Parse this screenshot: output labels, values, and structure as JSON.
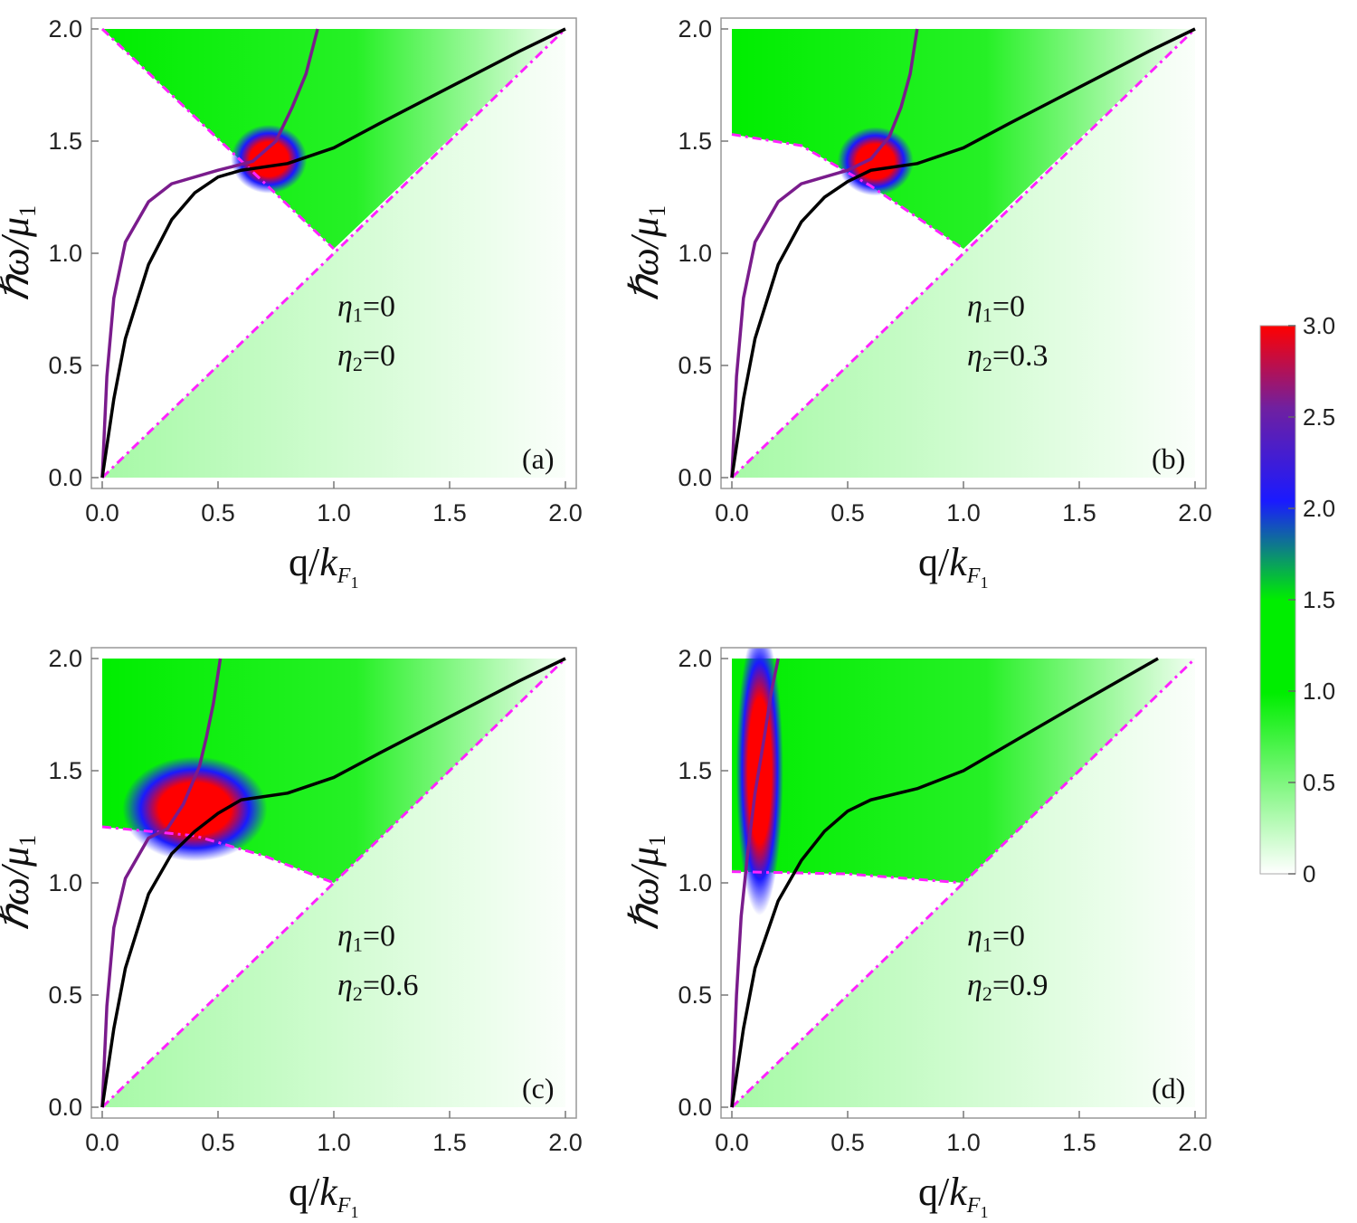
{
  "colors": {
    "black_curve": "#000000",
    "purple_curve": "#7a1c8c",
    "boundary": "#ff22ff",
    "high": "#ff0000",
    "mid": "#1a1aff",
    "green": "#00ee00",
    "low": "#ffffff"
  },
  "axes": {
    "xlabel_main": "q/",
    "xlabel_k": "k",
    "xlabel_sub": "F",
    "xlabel_subsub": "1",
    "ylabel_main": "ℏω/",
    "ylabel_mu": "μ",
    "ylabel_sub": "1",
    "xticks": [
      "0.0",
      "0.5",
      "1.0",
      "1.5",
      "2.0"
    ],
    "yticks": [
      "0.0",
      "0.5",
      "1.0",
      "1.5",
      "2.0"
    ]
  },
  "colorbar": {
    "range": [
      0,
      3.0
    ],
    "ticks": [
      "0",
      "0.5",
      "1.0",
      "1.5",
      "2.0",
      "2.5",
      "3.0"
    ]
  },
  "chart_data": [
    {
      "type": "heatmap",
      "panel_label": "(a)",
      "eta1_sym": "η",
      "eta1_sub": "1",
      "eta1_val": "=0",
      "eta2_sym": "η",
      "eta2_sub": "2",
      "eta2_val": "=0",
      "eta2": 0,
      "xlim": [
        0,
        2
      ],
      "ylim": [
        0,
        2
      ],
      "xlabel": "q/k_F1",
      "ylabel": "ħω/μ1",
      "boundary": [
        [
          0,
          2.0
        ],
        [
          1.0,
          1.02
        ],
        [
          0,
          0
        ],
        [
          2.0,
          2.0
        ]
      ],
      "hotspot": [
        0.72,
        1.42
      ],
      "black_curve": [
        [
          0,
          0
        ],
        [
          0.05,
          0.35
        ],
        [
          0.1,
          0.62
        ],
        [
          0.2,
          0.95
        ],
        [
          0.3,
          1.15
        ],
        [
          0.4,
          1.27
        ],
        [
          0.5,
          1.34
        ],
        [
          0.6,
          1.37
        ],
        [
          0.8,
          1.4
        ],
        [
          1.0,
          1.47
        ],
        [
          1.2,
          1.58
        ],
        [
          1.5,
          1.74
        ],
        [
          1.8,
          1.9
        ],
        [
          2.0,
          2.0
        ]
      ],
      "purple_curve": [
        [
          0,
          0
        ],
        [
          0.02,
          0.45
        ],
        [
          0.05,
          0.8
        ],
        [
          0.1,
          1.05
        ],
        [
          0.2,
          1.23
        ],
        [
          0.3,
          1.31
        ],
        [
          0.5,
          1.37
        ],
        [
          0.65,
          1.41
        ],
        [
          0.75,
          1.5
        ],
        [
          0.82,
          1.65
        ],
        [
          0.88,
          1.8
        ],
        [
          0.93,
          2.0
        ]
      ]
    },
    {
      "type": "heatmap",
      "panel_label": "(b)",
      "eta1_sym": "η",
      "eta1_sub": "1",
      "eta1_val": "=0",
      "eta2_sym": "η",
      "eta2_sub": "2",
      "eta2_val": "=0.3",
      "eta2": 0.3,
      "xlim": [
        0,
        2
      ],
      "ylim": [
        0,
        2
      ],
      "xlabel": "q/k_F1",
      "ylabel": "ħω/μ1",
      "boundary": [
        [
          0,
          1.53
        ],
        [
          0.3,
          1.48
        ],
        [
          0.6,
          1.3
        ],
        [
          1.0,
          1.02
        ],
        [
          0,
          0
        ],
        [
          2.0,
          2.0
        ]
      ],
      "hotspot": [
        0.62,
        1.41
      ],
      "black_curve": [
        [
          0,
          0
        ],
        [
          0.05,
          0.35
        ],
        [
          0.1,
          0.62
        ],
        [
          0.2,
          0.95
        ],
        [
          0.3,
          1.14
        ],
        [
          0.4,
          1.25
        ],
        [
          0.5,
          1.32
        ],
        [
          0.6,
          1.37
        ],
        [
          0.8,
          1.4
        ],
        [
          1.0,
          1.47
        ],
        [
          1.2,
          1.58
        ],
        [
          1.5,
          1.74
        ],
        [
          1.8,
          1.9
        ],
        [
          2.0,
          2.0
        ]
      ],
      "purple_curve": [
        [
          0,
          0
        ],
        [
          0.02,
          0.45
        ],
        [
          0.05,
          0.8
        ],
        [
          0.1,
          1.05
        ],
        [
          0.2,
          1.23
        ],
        [
          0.3,
          1.31
        ],
        [
          0.5,
          1.37
        ],
        [
          0.6,
          1.42
        ],
        [
          0.68,
          1.52
        ],
        [
          0.73,
          1.65
        ],
        [
          0.77,
          1.8
        ],
        [
          0.8,
          2.0
        ]
      ]
    },
    {
      "type": "heatmap",
      "panel_label": "(c)",
      "eta1_sym": "η",
      "eta1_sub": "1",
      "eta1_val": "=0",
      "eta2_sym": "η",
      "eta2_sub": "2",
      "eta2_val": "=0.6",
      "eta2": 0.6,
      "xlim": [
        0,
        2
      ],
      "ylim": [
        0,
        2
      ],
      "xlabel": "q/k_F1",
      "ylabel": "ħω/μ1",
      "boundary": [
        [
          0,
          1.25
        ],
        [
          0.4,
          1.21
        ],
        [
          0.7,
          1.12
        ],
        [
          1.0,
          1.0
        ],
        [
          0,
          0
        ],
        [
          2.0,
          2.0
        ]
      ],
      "hotspot": [
        0.4,
        1.33
      ],
      "black_curve": [
        [
          0,
          0
        ],
        [
          0.05,
          0.35
        ],
        [
          0.1,
          0.62
        ],
        [
          0.2,
          0.95
        ],
        [
          0.3,
          1.13
        ],
        [
          0.4,
          1.23
        ],
        [
          0.5,
          1.31
        ],
        [
          0.6,
          1.37
        ],
        [
          0.8,
          1.4
        ],
        [
          1.0,
          1.47
        ],
        [
          1.2,
          1.58
        ],
        [
          1.5,
          1.74
        ],
        [
          1.8,
          1.9
        ],
        [
          2.0,
          2.0
        ]
      ],
      "purple_curve": [
        [
          0,
          0
        ],
        [
          0.02,
          0.45
        ],
        [
          0.05,
          0.8
        ],
        [
          0.1,
          1.02
        ],
        [
          0.2,
          1.2
        ],
        [
          0.28,
          1.24
        ],
        [
          0.35,
          1.35
        ],
        [
          0.42,
          1.52
        ],
        [
          0.45,
          1.65
        ],
        [
          0.48,
          1.8
        ],
        [
          0.51,
          2.0
        ]
      ]
    },
    {
      "type": "heatmap",
      "panel_label": "(d)",
      "eta1_sym": "η",
      "eta1_sub": "1",
      "eta1_val": "=0",
      "eta2_sym": "η",
      "eta2_sub": "2",
      "eta2_val": "=0.9",
      "eta2": 0.9,
      "xlim": [
        0,
        2
      ],
      "ylim": [
        0,
        2
      ],
      "xlabel": "q/k_F1",
      "ylabel": "ħω/μ1",
      "boundary": [
        [
          0,
          1.05
        ],
        [
          0.5,
          1.04
        ],
        [
          1.0,
          1.0
        ],
        [
          0,
          0
        ],
        [
          2.0,
          2.0
        ]
      ],
      "hotspot": [
        0.12,
        1.5
      ],
      "black_curve": [
        [
          0,
          0
        ],
        [
          0.05,
          0.35
        ],
        [
          0.1,
          0.62
        ],
        [
          0.2,
          0.92
        ],
        [
          0.3,
          1.1
        ],
        [
          0.4,
          1.23
        ],
        [
          0.5,
          1.32
        ],
        [
          0.6,
          1.37
        ],
        [
          0.8,
          1.42
        ],
        [
          1.0,
          1.5
        ],
        [
          1.2,
          1.62
        ],
        [
          1.5,
          1.8
        ],
        [
          1.84,
          2.0
        ]
      ],
      "purple_curve": [
        [
          0,
          0
        ],
        [
          0.02,
          0.5
        ],
        [
          0.04,
          0.85
        ],
        [
          0.07,
          1.15
        ],
        [
          0.1,
          1.4
        ],
        [
          0.14,
          1.65
        ],
        [
          0.17,
          1.85
        ],
        [
          0.2,
          2.0
        ]
      ]
    }
  ]
}
